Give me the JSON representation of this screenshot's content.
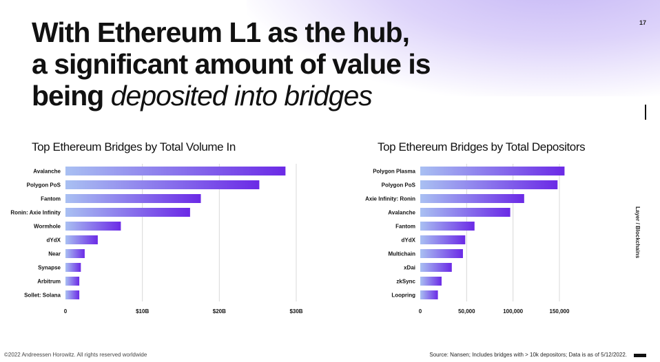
{
  "page_number": "17",
  "headline": {
    "line1": "With Ethereum L1 as the hub,",
    "line2": "a significant amount of value is",
    "line3_bold": "being",
    "line3_light": "deposited into bridges"
  },
  "side_label": "Layer / Blockchains",
  "colors": {
    "bar_start": "#a9c0f2",
    "bar_end": "#6b2ae6",
    "grid": "#d8d8d8"
  },
  "chart_data": [
    {
      "type": "bar",
      "orientation": "horizontal",
      "title": "Top Ethereum Bridges by Total Volume In",
      "categories": [
        "Avalanche",
        "Polygon PoS",
        "Fantom",
        "Ronin: Axie Infinity",
        "Wormhole",
        "dYdX",
        "Near",
        "Synapse",
        "Arbitrum",
        "Sollet: Solana"
      ],
      "values": [
        28.6,
        25.2,
        17.6,
        16.2,
        7.2,
        4.2,
        2.5,
        2.0,
        1.8,
        1.8
      ],
      "xlim": [
        0,
        30
      ],
      "ticks": [
        0,
        10,
        20,
        30
      ],
      "tick_labels": [
        "0",
        "$10B",
        "$20B",
        "$30B"
      ],
      "grid": true
    },
    {
      "type": "bar",
      "orientation": "horizontal",
      "title": "Top Ethereum Bridges  by Total Depositors",
      "categories": [
        "Polygon Plasma",
        "Polygon PoS",
        "Axie Infinity: Ronin",
        "Avalanche",
        "Fantom",
        "dYdX",
        "Multichain",
        "xDai",
        "zkSync",
        "Loopring"
      ],
      "values": [
        155500,
        148000,
        112000,
        97000,
        58500,
        48500,
        46000,
        34000,
        23000,
        19000
      ],
      "xlim": [
        0,
        150000
      ],
      "ticks": [
        0,
        50000,
        100000,
        150000
      ],
      "tick_labels": [
        "0",
        "50,000",
        "100,000",
        "150,000"
      ],
      "grid": true
    }
  ],
  "footer": {
    "copyright": "©2022 Andreessen Horowitz. All rights reserved worldwide",
    "source": "Source: Nansen; Includes bridges with > 10k depositors; Data is as of 5/12/2022."
  }
}
